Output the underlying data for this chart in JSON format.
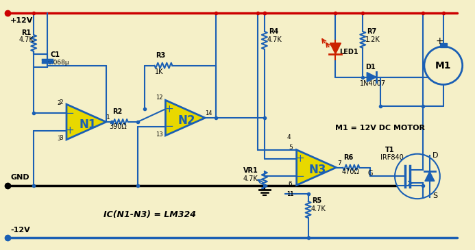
{
  "background_color": "#f5f0c8",
  "wire_color": "#1a5fb4",
  "power_color_pos": "#cc0000",
  "op_amp_color": "#e8d800",
  "op_amp_border": "#1a5fb4",
  "text_color": "#000000",
  "led_color": "#cc2200",
  "vpos": "+12V",
  "vneg": "-12V",
  "gnd": "GND",
  "ic_label": "IC(N1-N3) = LM324",
  "motor_label": "M1 = 12V DC MOTOR"
}
